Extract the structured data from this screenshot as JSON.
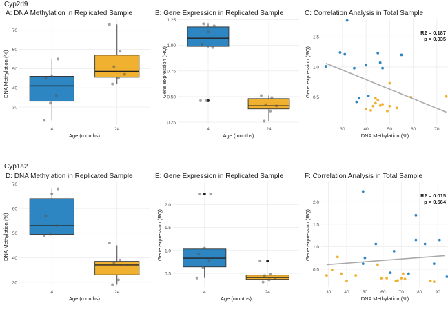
{
  "gene_labels": [
    "Cyp2d9",
    "Cyp1a2"
  ],
  "colors": {
    "four": "#2d86c2",
    "twentyfour": "#f0b030",
    "grid": "#ebebeb",
    "fit": "#aaaaaa"
  },
  "panels": [
    {
      "title": "A: DNA Methylation in Replicated Sample",
      "xlabel": "Age (months)",
      "ylabel": "DNA Methylation (%)"
    },
    {
      "title": "B: Gene Expression in Replicated Sample",
      "xlabel": "Age (months)",
      "ylabel": "Gene expression (RQ)"
    },
    {
      "title": "C: Correlation Analysis in Total Sample",
      "xlabel": "DNA Methylation (%)",
      "ylabel": "Gene expression (RQ)",
      "stat_r2": "R2 = 0.187",
      "stat_p": "p = 0.035"
    },
    {
      "title": "D: DNA Methylation in Replicated Sample",
      "xlabel": "Age (months)",
      "ylabel": "DNA Methylation (%)"
    },
    {
      "title": "E: Gene Expression in Replicated Sample",
      "xlabel": "Age (months)",
      "ylabel": "Gene expression (RQ)"
    },
    {
      "title": "F: Correlation Analysis in Total Sample",
      "xlabel": "DNA Methylation (%)",
      "ylabel": "Gene expression (RQ)",
      "stat_r2": "R2 = 0.015",
      "stat_p": "p = 0.564"
    }
  ],
  "chart_data": [
    {
      "type": "box",
      "title": "A: DNA Methylation in Replicated Sample",
      "xlabel": "Age (months)",
      "ylabel": "DNA Methylation (%)",
      "ylim": [
        21,
        76
      ],
      "yticks": [
        30,
        40,
        50,
        60,
        70
      ],
      "categories": [
        "4",
        "24"
      ],
      "boxes": [
        {
          "min": 23,
          "q1": 33,
          "median": 41,
          "q3": 46,
          "max": 55
        },
        {
          "min": 42,
          "q1": 45.5,
          "median": 48.5,
          "q3": 57,
          "max": 73
        }
      ],
      "points": [
        [
          23,
          32,
          36,
          45,
          46,
          55
        ],
        [
          42,
          45,
          47,
          51,
          59,
          73
        ]
      ]
    },
    {
      "type": "box",
      "title": "B: Gene Expression in Replicated Sample",
      "xlabel": "Age (months)",
      "ylabel": "Gene expression (RQ)",
      "ylim": [
        0.23,
        1.26
      ],
      "yticks": [
        0.25,
        0.5,
        0.75,
        1.0,
        1.25
      ],
      "tick_labels": [
        "0.25",
        "0.50",
        "0.75",
        "1.00",
        "1.25"
      ],
      "categories": [
        "4",
        "24"
      ],
      "boxes": [
        {
          "min": 0.98,
          "q1": 0.99,
          "median": 1.07,
          "q3": 1.18,
          "max": 1.21,
          "outliers": [
            0.46
          ]
        },
        {
          "min": 0.26,
          "q1": 0.38,
          "median": 0.41,
          "q3": 0.48,
          "max": 0.51
        }
      ],
      "points": [
        [
          0.46,
          0.46,
          0.98,
          1.01,
          1.13,
          1.19,
          1.21
        ],
        [
          0.26,
          0.36,
          0.41,
          0.42,
          0.49,
          0.51
        ]
      ]
    },
    {
      "type": "scatter",
      "title": "C: Correlation Analysis in Total Sample",
      "xlabel": "DNA Methylation (%)",
      "ylabel": "Gene expression (RQ)",
      "xlim": [
        21,
        75
      ],
      "ylim": [
        0.05,
        1.8
      ],
      "xticks": [
        30,
        40,
        50,
        60,
        70
      ],
      "yticks": [
        0.5,
        1.0,
        1.5
      ],
      "tick_labels": [
        "0.5",
        "1.0",
        "1.5"
      ],
      "fit": [
        [
          23,
          1.06
        ],
        [
          74,
          0.25
        ]
      ],
      "series": [
        {
          "group": "4",
          "points": [
            [
              23,
              1.01
            ],
            [
              29,
              1.24
            ],
            [
              31,
              1.21
            ],
            [
              32,
              1.77
            ],
            [
              35,
              0.98
            ],
            [
              36,
              0.42
            ],
            [
              37,
              0.48
            ],
            [
              40,
              1.03
            ],
            [
              41,
              0.52
            ],
            [
              45,
              1.23
            ],
            [
              46,
              1.07
            ],
            [
              47,
              0.98
            ],
            [
              55,
              1.2
            ]
          ]
        },
        {
          "group": "24",
          "points": [
            [
              40,
              0.3
            ],
            [
              42,
              0.28
            ],
            [
              43,
              0.35
            ],
            [
              44,
              0.48
            ],
            [
              44,
              0.4
            ],
            [
              45,
              0.45
            ],
            [
              46,
              0.36
            ],
            [
              47,
              0.38
            ],
            [
              49,
              0.27
            ],
            [
              50,
              0.73
            ],
            [
              50,
              0.35
            ],
            [
              53,
              0.32
            ],
            [
              59,
              0.5
            ],
            [
              74,
              0.51
            ]
          ]
        }
      ]
    },
    {
      "type": "box",
      "title": "D: DNA Methylation in Replicated Sample",
      "xlabel": "Age (months)",
      "ylabel": "DNA Methylation (%)",
      "ylim": [
        28,
        71
      ],
      "yticks": [
        30,
        40,
        50,
        60,
        70
      ],
      "categories": [
        "4",
        "24"
      ],
      "boxes": [
        {
          "min": 49,
          "q1": 49.5,
          "median": 53,
          "q3": 64,
          "max": 68
        },
        {
          "min": 29,
          "q1": 33,
          "median": 37,
          "q3": 38.5,
          "max": 45
        }
      ],
      "points": [
        [
          49,
          49.5,
          53,
          57,
          66,
          68
        ],
        [
          29,
          31,
          37,
          38,
          39,
          46
        ]
      ]
    },
    {
      "type": "box",
      "title": "E: Gene Expression in Replicated Sample",
      "xlabel": "Age (months)",
      "ylabel": "Gene expression (RQ)",
      "ylim": [
        0.2,
        2.5
      ],
      "yticks": [
        0.5,
        1.0,
        1.5,
        2.0
      ],
      "tick_labels": [
        "0.5",
        "1.0",
        "1.5",
        "2.0"
      ],
      "categories": [
        "4",
        "24"
      ],
      "boxes": [
        {
          "min": 0.4,
          "q1": 0.64,
          "median": 0.83,
          "q3": 1.03,
          "max": 1.03,
          "outliers": [
            2.23
          ]
        },
        {
          "min": 0.35,
          "q1": 0.37,
          "median": 0.41,
          "q3": 0.46,
          "max": 0.46,
          "outliers": [
            0.77
          ]
        }
      ],
      "points": [
        [
          0.4,
          0.62,
          0.78,
          0.92,
          1.05,
          2.23,
          2.23
        ],
        [
          0.31,
          0.36,
          0.4,
          0.45,
          0.48,
          0.77
        ]
      ]
    },
    {
      "type": "scatter",
      "title": "F: Correlation Analysis in Total Sample",
      "xlabel": "DNA Methylation (%)",
      "ylabel": "Gene expression (RQ)",
      "xlim": [
        26,
        96
      ],
      "ylim": [
        0.1,
        2.45
      ],
      "xticks": [
        30,
        40,
        50,
        60,
        70,
        80,
        90
      ],
      "yticks": [
        0.5,
        1.0,
        1.5,
        2.0
      ],
      "tick_labels": [
        "0.5",
        "1.0",
        "1.5",
        "2.0"
      ],
      "fit": [
        [
          29,
          0.6
        ],
        [
          94,
          0.8
        ]
      ],
      "series": [
        {
          "group": "4",
          "points": [
            [
              49,
              2.23
            ],
            [
              49,
              0.62
            ],
            [
              50,
              0.75
            ],
            [
              56,
              1.06
            ],
            [
              64,
              0.42
            ],
            [
              66,
              0.9
            ],
            [
              74,
              0.4
            ],
            [
              78,
              1.7
            ],
            [
              78,
              1.15
            ],
            [
              83,
              1.06
            ],
            [
              88,
              0.62
            ],
            [
              91,
              1.15
            ],
            [
              95,
              0.33
            ]
          ]
        },
        {
          "group": "24",
          "points": [
            [
              29,
              0.36
            ],
            [
              32,
              0.48
            ],
            [
              35,
              0.77
            ],
            [
              37,
              0.4
            ],
            [
              40,
              0.24
            ],
            [
              45,
              0.36
            ],
            [
              57,
              0.6
            ],
            [
              59,
              0.3
            ],
            [
              62,
              0.3
            ],
            [
              67,
              0.24
            ],
            [
              68,
              0.25
            ],
            [
              70,
              0.3
            ],
            [
              71,
              0.4
            ],
            [
              72,
              0.28
            ],
            [
              86,
              0.24
            ],
            [
              88,
              0.22
            ]
          ]
        }
      ]
    }
  ]
}
